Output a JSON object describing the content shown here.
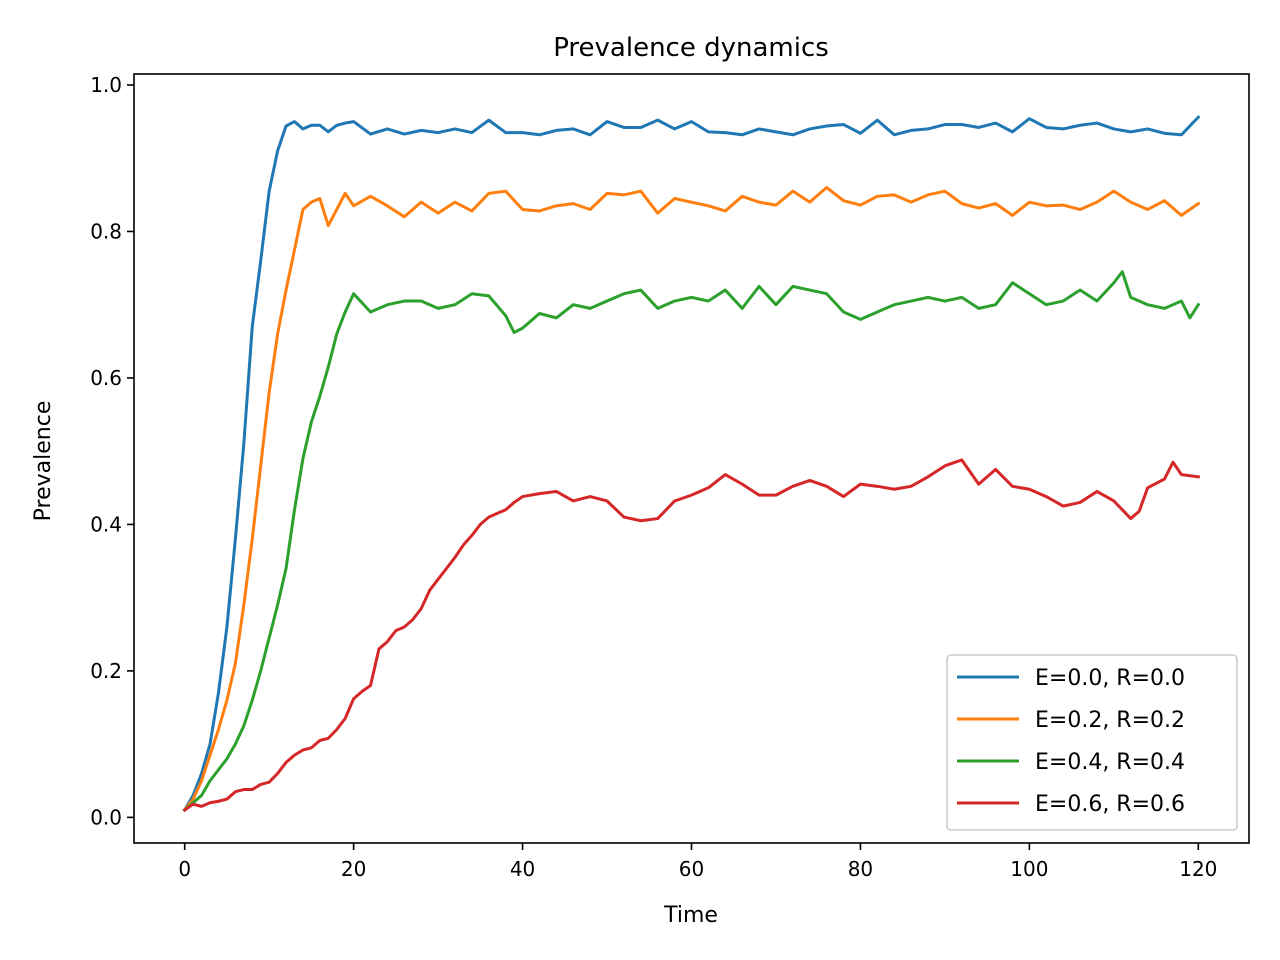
{
  "chart_data": {
    "type": "line",
    "title": "Prevalence dynamics",
    "xlabel": "Time",
    "ylabel": "Prevalence",
    "xlim": [
      -6,
      126
    ],
    "ylim": [
      -0.035,
      1.015
    ],
    "xticks": [
      0,
      20,
      40,
      60,
      80,
      100,
      120
    ],
    "xtick_labels": [
      "0",
      "20",
      "40",
      "60",
      "80",
      "100",
      "120"
    ],
    "yticks": [
      0.0,
      0.2,
      0.4,
      0.6,
      0.8,
      1.0
    ],
    "ytick_labels": [
      "0.0",
      "0.2",
      "0.4",
      "0.6",
      "0.8",
      "1.0"
    ],
    "grid": false,
    "legend_position": "lower-right",
    "series": [
      {
        "name": "E=0.0, R=0.0",
        "color": "#1f77b4",
        "x": [
          0,
          1,
          2,
          3,
          4,
          5,
          6,
          7,
          8,
          9,
          10,
          11,
          12,
          13,
          14,
          15,
          16,
          17,
          18,
          19,
          20,
          22,
          24,
          26,
          28,
          30,
          32,
          34,
          36,
          38,
          40,
          42,
          44,
          46,
          48,
          50,
          52,
          54,
          56,
          58,
          60,
          62,
          64,
          66,
          68,
          70,
          72,
          74,
          76,
          78,
          80,
          82,
          84,
          86,
          88,
          90,
          92,
          94,
          96,
          98,
          100,
          102,
          104,
          106,
          108,
          110,
          112,
          114,
          116,
          118,
          120
        ],
        "y": [
          0.01,
          0.03,
          0.06,
          0.1,
          0.17,
          0.26,
          0.38,
          0.51,
          0.67,
          0.76,
          0.855,
          0.91,
          0.944,
          0.95,
          0.94,
          0.945,
          0.945,
          0.936,
          0.945,
          0.948,
          0.95,
          0.933,
          0.94,
          0.933,
          0.938,
          0.935,
          0.94,
          0.935,
          0.952,
          0.935,
          0.935,
          0.932,
          0.938,
          0.94,
          0.932,
          0.95,
          0.942,
          0.942,
          0.952,
          0.94,
          0.95,
          0.936,
          0.935,
          0.932,
          0.94,
          0.936,
          0.932,
          0.94,
          0.944,
          0.946,
          0.934,
          0.952,
          0.932,
          0.938,
          0.94,
          0.946,
          0.946,
          0.942,
          0.948,
          0.936,
          0.954,
          0.942,
          0.94,
          0.945,
          0.948,
          0.94,
          0.936,
          0.94,
          0.934,
          0.932,
          0.956
        ]
      },
      {
        "name": "E=0.2, R=0.2",
        "color": "#ff7f0e",
        "x": [
          0,
          1,
          2,
          3,
          4,
          5,
          6,
          7,
          8,
          9,
          10,
          11,
          12,
          13,
          14,
          15,
          16,
          17,
          18,
          19,
          20,
          22,
          24,
          26,
          28,
          30,
          32,
          34,
          36,
          38,
          40,
          42,
          44,
          46,
          48,
          50,
          52,
          54,
          56,
          58,
          60,
          62,
          64,
          66,
          68,
          70,
          72,
          74,
          76,
          78,
          80,
          82,
          84,
          86,
          88,
          90,
          92,
          94,
          96,
          98,
          100,
          102,
          104,
          106,
          108,
          110,
          112,
          114,
          116,
          118,
          120
        ],
        "y": [
          0.01,
          0.025,
          0.05,
          0.085,
          0.12,
          0.16,
          0.21,
          0.29,
          0.38,
          0.48,
          0.58,
          0.66,
          0.72,
          0.775,
          0.83,
          0.84,
          0.845,
          0.808,
          0.83,
          0.852,
          0.835,
          0.848,
          0.835,
          0.82,
          0.84,
          0.825,
          0.84,
          0.828,
          0.852,
          0.855,
          0.83,
          0.828,
          0.835,
          0.838,
          0.83,
          0.852,
          0.85,
          0.855,
          0.825,
          0.845,
          0.84,
          0.835,
          0.828,
          0.848,
          0.84,
          0.836,
          0.855,
          0.84,
          0.86,
          0.842,
          0.836,
          0.848,
          0.85,
          0.84,
          0.85,
          0.855,
          0.838,
          0.832,
          0.838,
          0.822,
          0.84,
          0.835,
          0.836,
          0.83,
          0.84,
          0.855,
          0.84,
          0.83,
          0.842,
          0.822,
          0.838
        ]
      },
      {
        "name": "E=0.4, R=0.4",
        "color": "#2ca02c",
        "x": [
          0,
          1,
          2,
          3,
          4,
          5,
          6,
          7,
          8,
          9,
          10,
          11,
          12,
          13,
          14,
          15,
          16,
          17,
          18,
          19,
          20,
          22,
          24,
          26,
          28,
          30,
          32,
          34,
          36,
          38,
          39,
          40,
          42,
          44,
          46,
          48,
          50,
          52,
          54,
          56,
          58,
          60,
          62,
          64,
          66,
          68,
          70,
          72,
          74,
          76,
          78,
          80,
          82,
          84,
          86,
          88,
          90,
          92,
          94,
          96,
          98,
          100,
          102,
          104,
          106,
          108,
          110,
          111,
          112,
          114,
          116,
          118,
          119,
          120
        ],
        "y": [
          0.01,
          0.02,
          0.03,
          0.05,
          0.065,
          0.08,
          0.1,
          0.125,
          0.16,
          0.2,
          0.245,
          0.29,
          0.34,
          0.42,
          0.49,
          0.54,
          0.575,
          0.615,
          0.66,
          0.69,
          0.715,
          0.69,
          0.7,
          0.705,
          0.705,
          0.695,
          0.7,
          0.715,
          0.712,
          0.685,
          0.662,
          0.668,
          0.688,
          0.682,
          0.7,
          0.695,
          0.705,
          0.715,
          0.72,
          0.695,
          0.705,
          0.71,
          0.705,
          0.72,
          0.695,
          0.725,
          0.7,
          0.725,
          0.72,
          0.715,
          0.69,
          0.68,
          0.69,
          0.7,
          0.705,
          0.71,
          0.705,
          0.71,
          0.695,
          0.7,
          0.73,
          0.715,
          0.7,
          0.705,
          0.72,
          0.705,
          0.73,
          0.745,
          0.71,
          0.7,
          0.695,
          0.705,
          0.682,
          0.7
        ]
      },
      {
        "name": "E=0.6, R=0.6",
        "color": "#d62728",
        "x": [
          0,
          1,
          2,
          3,
          4,
          5,
          6,
          7,
          8,
          9,
          10,
          11,
          12,
          13,
          14,
          15,
          16,
          17,
          18,
          19,
          20,
          21,
          22,
          23,
          24,
          25,
          26,
          27,
          28,
          29,
          30,
          31,
          32,
          33,
          34,
          35,
          36,
          37,
          38,
          39,
          40,
          42,
          44,
          46,
          48,
          50,
          52,
          54,
          56,
          58,
          60,
          62,
          64,
          66,
          68,
          70,
          72,
          74,
          76,
          78,
          80,
          82,
          84,
          86,
          88,
          90,
          92,
          94,
          96,
          98,
          100,
          102,
          104,
          106,
          108,
          110,
          112,
          113,
          114,
          116,
          117,
          118,
          120
        ],
        "y": [
          0.01,
          0.018,
          0.015,
          0.02,
          0.022,
          0.025,
          0.035,
          0.038,
          0.038,
          0.045,
          0.048,
          0.06,
          0.075,
          0.085,
          0.092,
          0.095,
          0.105,
          0.108,
          0.12,
          0.135,
          0.162,
          0.172,
          0.18,
          0.23,
          0.24,
          0.255,
          0.26,
          0.27,
          0.285,
          0.31,
          0.325,
          0.34,
          0.355,
          0.372,
          0.385,
          0.4,
          0.41,
          0.415,
          0.42,
          0.43,
          0.438,
          0.442,
          0.445,
          0.432,
          0.438,
          0.432,
          0.41,
          0.405,
          0.408,
          0.432,
          0.44,
          0.45,
          0.468,
          0.455,
          0.44,
          0.44,
          0.452,
          0.46,
          0.452,
          0.438,
          0.455,
          0.452,
          0.448,
          0.452,
          0.465,
          0.48,
          0.488,
          0.455,
          0.475,
          0.452,
          0.448,
          0.438,
          0.425,
          0.43,
          0.445,
          0.432,
          0.408,
          0.418,
          0.45,
          0.462,
          0.485,
          0.468,
          0.465
        ]
      }
    ]
  }
}
